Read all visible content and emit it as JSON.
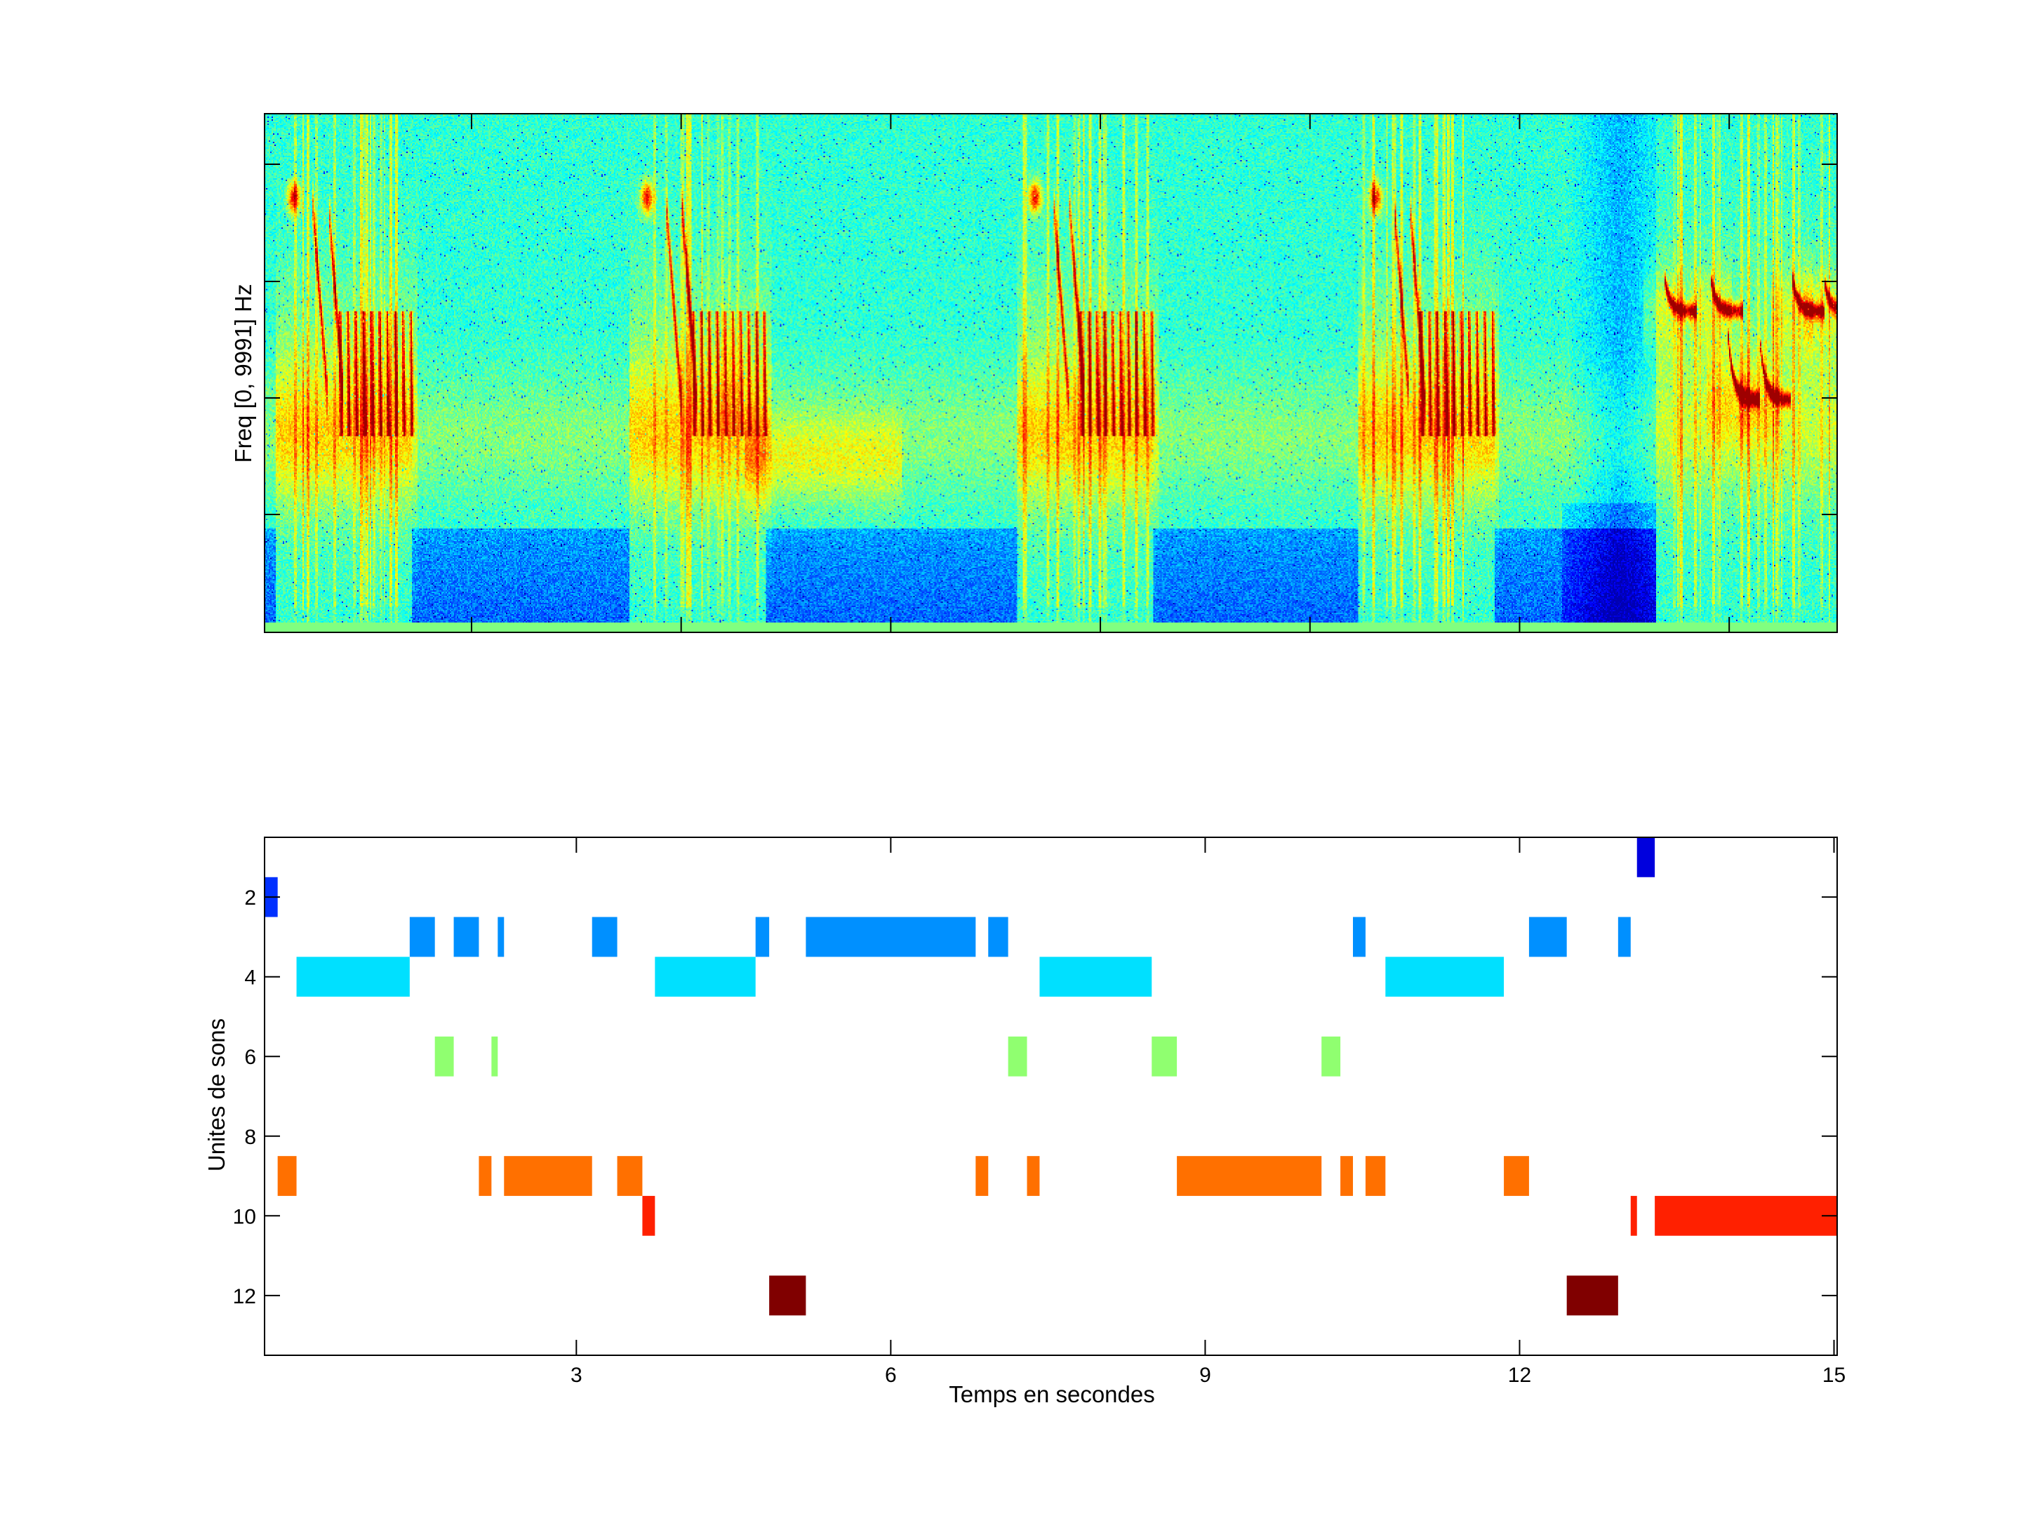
{
  "chart_data": [
    {
      "type": "heatmap",
      "title": "",
      "xlabel": "",
      "ylabel": "Freq [0, 9991] Hz",
      "xlim": [
        0.025,
        15.03
      ],
      "colormap": "jet"
    },
    {
      "type": "bar",
      "subtype": "segments",
      "xlabel": "Temps en secondes",
      "ylabel": "Unites de sons",
      "xlim": [
        0.025,
        15.03
      ],
      "ylim": [
        0.5,
        13.5
      ],
      "y_reversed": true,
      "xticks": [
        3,
        6,
        9,
        12,
        15
      ],
      "yticks": [
        2,
        4,
        6,
        8,
        10,
        12
      ],
      "series": [
        {
          "unit": 1,
          "color": "#0000dd",
          "segments": [
            [
              13.12,
              13.29
            ]
          ]
        },
        {
          "unit": 2,
          "color": "#0030ff",
          "segments": [
            [
              0.025,
              0.15
            ]
          ]
        },
        {
          "unit": 3,
          "color": "#0090ff",
          "segments": [
            [
              1.41,
              1.65
            ],
            [
              1.83,
              2.07
            ],
            [
              2.25,
              2.31
            ],
            [
              3.15,
              3.39
            ],
            [
              4.71,
              4.84
            ],
            [
              5.19,
              6.81
            ],
            [
              6.93,
              7.12
            ],
            [
              10.41,
              10.53
            ],
            [
              12.09,
              12.45
            ],
            [
              12.94,
              13.06
            ]
          ]
        },
        {
          "unit": 4,
          "color": "#00e0ff",
          "segments": [
            [
              0.33,
              1.41
            ],
            [
              3.75,
              4.71
            ],
            [
              7.42,
              8.49
            ],
            [
              10.72,
              11.85
            ]
          ]
        },
        {
          "unit": 6,
          "color": "#90ff70",
          "segments": [
            [
              1.65,
              1.83
            ],
            [
              2.19,
              2.25
            ],
            [
              7.12,
              7.3
            ],
            [
              8.49,
              8.73
            ],
            [
              10.11,
              10.29
            ]
          ]
        },
        {
          "unit": 9,
          "color": "#ff7000",
          "segments": [
            [
              0.15,
              0.33
            ],
            [
              2.07,
              2.19
            ],
            [
              2.31,
              3.15
            ],
            [
              3.39,
              3.63
            ],
            [
              6.81,
              6.93
            ],
            [
              7.3,
              7.42
            ],
            [
              8.73,
              10.11
            ],
            [
              10.29,
              10.41
            ],
            [
              10.53,
              10.72
            ],
            [
              11.85,
              12.09
            ]
          ]
        },
        {
          "unit": 10,
          "color": "#ff2000",
          "segments": [
            [
              3.63,
              3.75
            ],
            [
              13.06,
              13.12
            ],
            [
              13.29,
              15.03
            ]
          ]
        },
        {
          "unit": 12,
          "color": "#800000",
          "segments": [
            [
              4.84,
              5.19
            ],
            [
              12.45,
              12.94
            ]
          ]
        }
      ]
    }
  ]
}
